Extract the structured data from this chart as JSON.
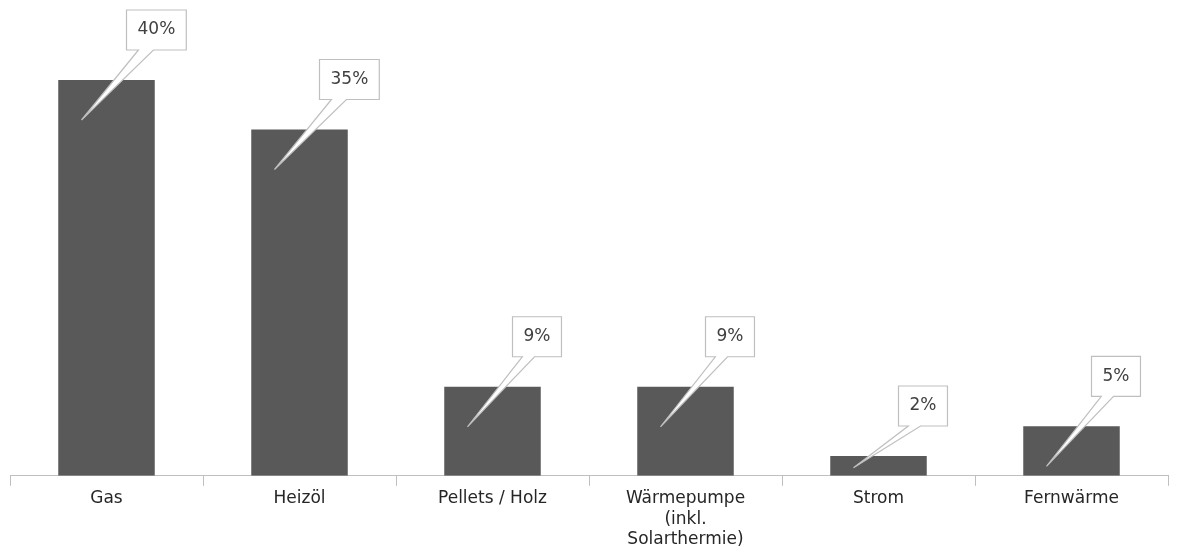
{
  "chart_data": {
    "type": "bar",
    "categories": [
      "Gas",
      "Heizöl",
      "Pellets / Holz",
      "Wärmepumpe (inkl. Solarthermie)",
      "Strom",
      "Fernwärme"
    ],
    "values": [
      40,
      35,
      9,
      9,
      2,
      5
    ],
    "color": "#595959",
    "data_labels": true,
    "value_labels": [
      "40%",
      "35%",
      "9%",
      "9%",
      "2%",
      "5%"
    ],
    "grid": false,
    "legend": false
  }
}
